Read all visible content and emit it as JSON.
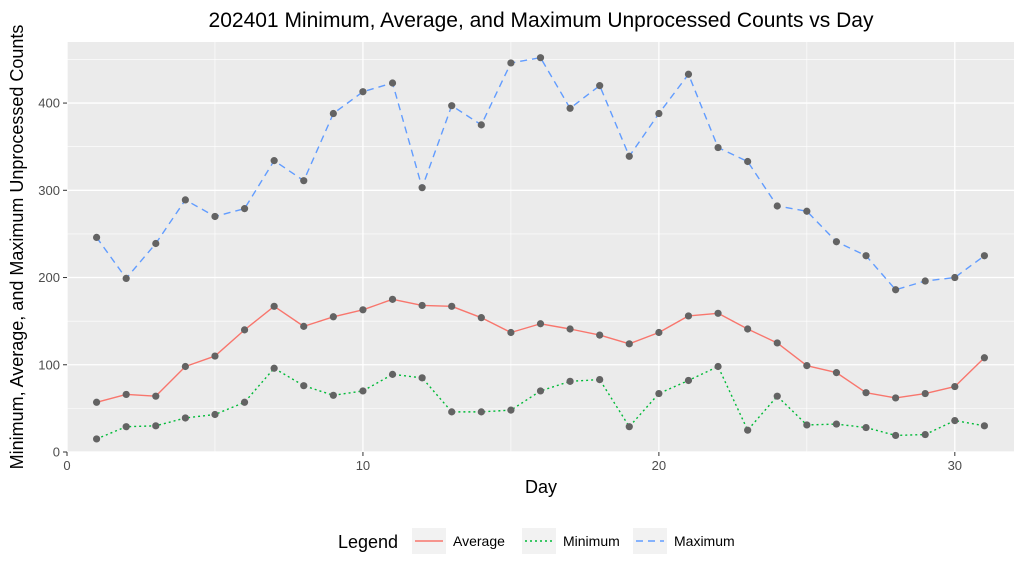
{
  "chart_data": {
    "type": "line",
    "title": "202401 Minimum, Average, and Maximum Unprocessed Counts vs Day",
    "xlabel": "Day",
    "ylabel": "Minimum, Average, and Maximum Unprocessed Counts",
    "xlim": [
      0,
      32
    ],
    "ylim": [
      0,
      470
    ],
    "x_ticks": [
      0,
      10,
      20,
      30
    ],
    "y_ticks": [
      0,
      100,
      200,
      300,
      400
    ],
    "grid": true,
    "panel_background": "#ebebeb",
    "point_color": "#636363",
    "legend": {
      "title": "Legend",
      "position": "bottom",
      "entries": [
        {
          "label": "Average",
          "color": "#f8766d",
          "dash": "solid"
        },
        {
          "label": "Minimum",
          "color": "#00ba38",
          "dash": "dotted"
        },
        {
          "label": "Maximum",
          "color": "#619cff",
          "dash": "dashed"
        }
      ]
    },
    "x": [
      1,
      2,
      3,
      4,
      5,
      6,
      7,
      8,
      9,
      10,
      11,
      12,
      13,
      14,
      15,
      16,
      17,
      18,
      19,
      20,
      21,
      22,
      23,
      24,
      25,
      26,
      27,
      28,
      29,
      30,
      31
    ],
    "series": [
      {
        "name": "Maximum",
        "color": "#619cff",
        "dash": "dashed",
        "values": [
          246,
          199,
          239,
          289,
          270,
          279,
          334,
          311,
          388,
          413,
          423,
          303,
          397,
          375,
          446,
          452,
          394,
          420,
          339,
          388,
          433,
          349,
          333,
          282,
          276,
          241,
          225,
          186,
          196,
          200,
          225
        ]
      },
      {
        "name": "Average",
        "color": "#f8766d",
        "dash": "solid",
        "values": [
          57,
          66,
          64,
          98,
          110,
          140,
          167,
          144,
          155,
          163,
          175,
          168,
          167,
          154,
          137,
          147,
          141,
          134,
          124,
          137,
          156,
          159,
          141,
          125,
          99,
          91,
          68,
          62,
          67,
          75,
          108
        ]
      },
      {
        "name": "Minimum",
        "color": "#00ba38",
        "dash": "dotted",
        "values": [
          15,
          29,
          30,
          39,
          43,
          57,
          96,
          76,
          65,
          70,
          89,
          85,
          46,
          46,
          48,
          70,
          81,
          83,
          29,
          67,
          82,
          98,
          25,
          64,
          31,
          32,
          28,
          19,
          20,
          36,
          30
        ]
      }
    ]
  }
}
